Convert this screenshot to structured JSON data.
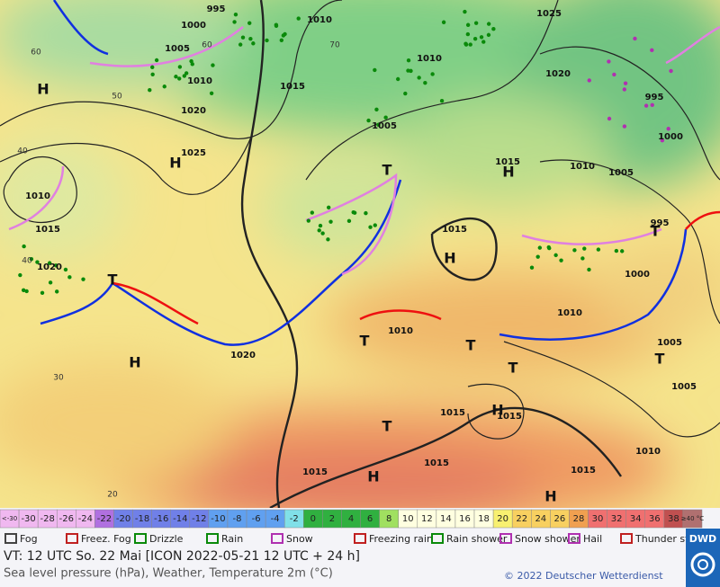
{
  "map": {
    "pressure_labels": [
      "995",
      "1000",
      "1005",
      "1010",
      "1010",
      "1015",
      "1020",
      "1025",
      "1010",
      "1015",
      "1020",
      "1020",
      "1005",
      "1010",
      "1025",
      "1020",
      "1010",
      "1005",
      "995",
      "1000",
      "995",
      "1000",
      "1010",
      "1005",
      "1005",
      "1010",
      "1015",
      "1015",
      "1010",
      "1015",
      "1015",
      "1015",
      "1015",
      "1015"
    ],
    "pressure_centers": [
      "H",
      "H",
      "H",
      "H",
      "H",
      "T",
      "T",
      "T",
      "T",
      "T",
      "T",
      "H",
      "H",
      "H",
      "T",
      "T"
    ],
    "temperature_labels": [
      "60",
      "50",
      "40",
      "40",
      "30",
      "20",
      "70",
      "60"
    ]
  },
  "color_scale": [
    "<-30",
    "-30",
    "-28",
    "-26",
    "-24",
    "-22",
    "-20",
    "-18",
    "-16",
    "-14",
    "-12",
    "-10",
    "-8",
    "-6",
    "-4",
    "-2",
    "0",
    "2",
    "4",
    "6",
    "8",
    "10",
    "12",
    "14",
    "16",
    "18",
    "20",
    "22",
    "24",
    "26",
    "28",
    "30",
    "32",
    "34",
    "36",
    "38",
    "≥40 °C"
  ],
  "legend": [
    "Fog",
    "Freez. Fog",
    "Drizzle",
    "Rain",
    "Snow",
    "Freezing rain",
    "Rain shower",
    "Snow shower",
    "Hail",
    "Thunder storm"
  ],
  "footer": {
    "valid_time": "VT: 12 UTC So.  22 Mai [ICON 2022-05-21  12 UTC + 24 h]",
    "description": "Sea level pressure (hPa), Weather, Temperature 2m (°C)",
    "copyright": "© 2022 Deutscher Wetterdienst",
    "logo": "DWD"
  }
}
